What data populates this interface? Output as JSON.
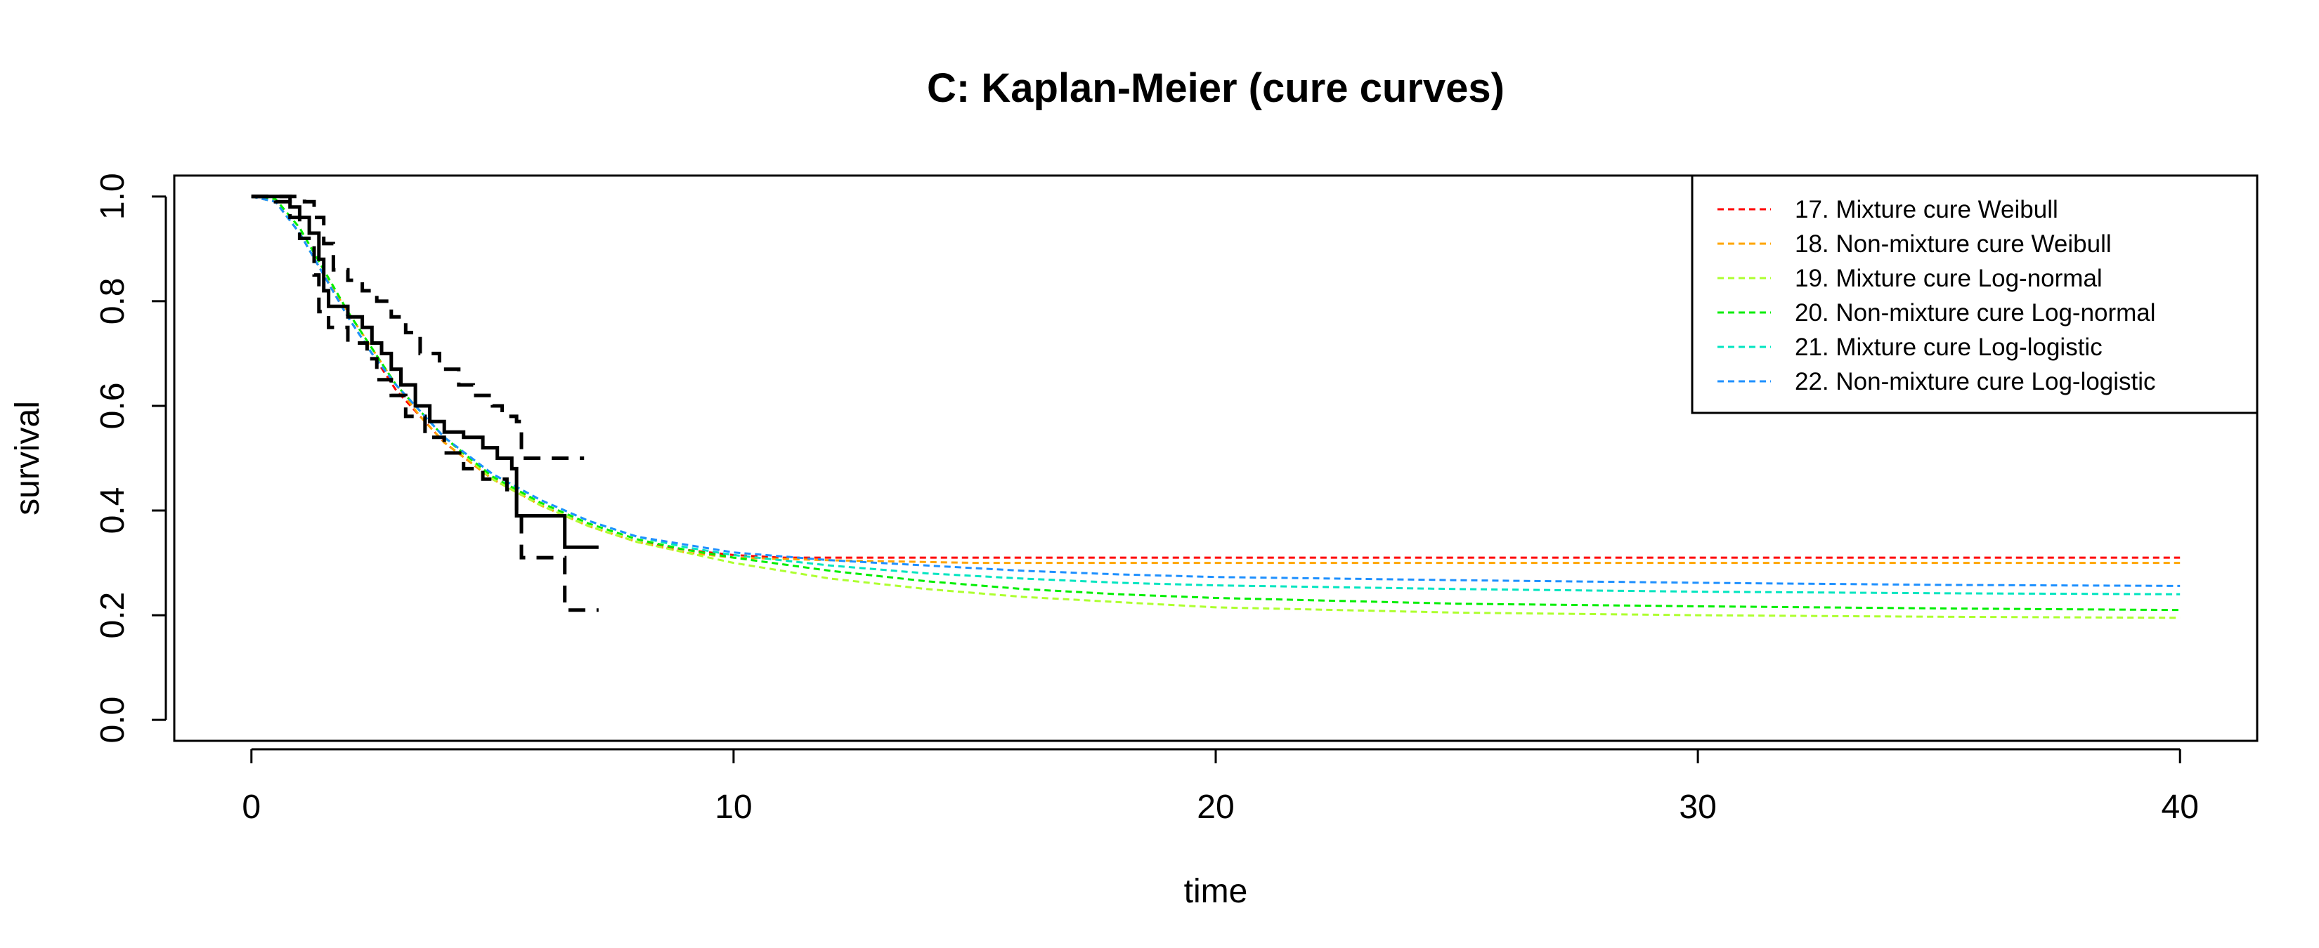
{
  "chart_data": {
    "type": "line",
    "title": "C: Kaplan-Meier (cure curves)",
    "xlabel": "time",
    "ylabel": "survival",
    "xlim": [
      -1.6,
      41.6
    ],
    "ylim": [
      -0.04,
      1.04
    ],
    "xticks": [
      0,
      10,
      20,
      30,
      40
    ],
    "xtick_labels": [
      "0",
      "10",
      "20",
      "30",
      "40"
    ],
    "yticks": [
      0.0,
      0.2,
      0.4,
      0.6,
      0.8,
      1.0
    ],
    "ytick_labels": [
      "0.0",
      "0.2",
      "0.4",
      "0.6",
      "0.8",
      "1.0"
    ],
    "grid": false,
    "legend_position": "top-right",
    "kaplan_meier": {
      "color": "#000000",
      "estimate": [
        [
          0,
          1.0
        ],
        [
          0.6,
          1.0
        ],
        [
          0.8,
          0.98
        ],
        [
          1.0,
          0.96
        ],
        [
          1.2,
          0.93
        ],
        [
          1.4,
          0.88
        ],
        [
          1.5,
          0.82
        ],
        [
          1.6,
          0.79
        ],
        [
          2.0,
          0.77
        ],
        [
          2.3,
          0.75
        ],
        [
          2.5,
          0.72
        ],
        [
          2.7,
          0.7
        ],
        [
          2.9,
          0.67
        ],
        [
          3.1,
          0.64
        ],
        [
          3.4,
          0.6
        ],
        [
          3.7,
          0.57
        ],
        [
          4.0,
          0.55
        ],
        [
          4.4,
          0.54
        ],
        [
          4.8,
          0.52
        ],
        [
          5.1,
          0.5
        ],
        [
          5.4,
          0.48
        ],
        [
          5.5,
          0.39
        ],
        [
          6.5,
          0.39
        ],
        [
          6.5,
          0.33
        ],
        [
          7.2,
          0.33
        ]
      ],
      "upper_ci": [
        [
          0,
          1.0
        ],
        [
          0.9,
          1.0
        ],
        [
          1.1,
          0.99
        ],
        [
          1.3,
          0.96
        ],
        [
          1.5,
          0.91
        ],
        [
          1.7,
          0.86
        ],
        [
          2.0,
          0.84
        ],
        [
          2.3,
          0.82
        ],
        [
          2.6,
          0.8
        ],
        [
          2.9,
          0.77
        ],
        [
          3.2,
          0.74
        ],
        [
          3.5,
          0.7
        ],
        [
          3.9,
          0.67
        ],
        [
          4.3,
          0.64
        ],
        [
          4.6,
          0.62
        ],
        [
          5.0,
          0.6
        ],
        [
          5.2,
          0.58
        ],
        [
          5.5,
          0.57
        ],
        [
          5.6,
          0.5
        ],
        [
          6.5,
          0.5
        ],
        [
          6.9,
          0.5
        ]
      ],
      "lower_ci": [
        [
          0,
          1.0
        ],
        [
          0.5,
          0.99
        ],
        [
          0.8,
          0.96
        ],
        [
          1.0,
          0.92
        ],
        [
          1.3,
          0.85
        ],
        [
          1.4,
          0.78
        ],
        [
          1.6,
          0.75
        ],
        [
          2.0,
          0.72
        ],
        [
          2.4,
          0.69
        ],
        [
          2.6,
          0.65
        ],
        [
          2.9,
          0.62
        ],
        [
          3.2,
          0.58
        ],
        [
          3.6,
          0.54
        ],
        [
          4.0,
          0.51
        ],
        [
          4.4,
          0.48
        ],
        [
          4.8,
          0.46
        ],
        [
          5.3,
          0.44
        ],
        [
          5.5,
          0.4
        ],
        [
          5.6,
          0.31
        ],
        [
          6.4,
          0.31
        ],
        [
          6.5,
          0.21
        ],
        [
          7.2,
          0.21
        ]
      ]
    },
    "series": [
      {
        "name": "17. Mixture cure Weibull",
        "color": "#FF0000",
        "values": [
          [
            0,
            1
          ],
          [
            0.5,
            0.99
          ],
          [
            1,
            0.93
          ],
          [
            1.5,
            0.85
          ],
          [
            2,
            0.77
          ],
          [
            2.5,
            0.7
          ],
          [
            3,
            0.63
          ],
          [
            3.5,
            0.58
          ],
          [
            4,
            0.53
          ],
          [
            5,
            0.46
          ],
          [
            6,
            0.41
          ],
          [
            7,
            0.37
          ],
          [
            8,
            0.34
          ],
          [
            9,
            0.325
          ],
          [
            10,
            0.315
          ],
          [
            11,
            0.31
          ],
          [
            12,
            0.31
          ],
          [
            40,
            0.31
          ]
        ]
      },
      {
        "name": "18. Non-mixture cure Weibull",
        "color": "#FFA500",
        "values": [
          [
            0,
            1
          ],
          [
            0.5,
            0.99
          ],
          [
            1,
            0.93
          ],
          [
            1.5,
            0.85
          ],
          [
            2,
            0.78
          ],
          [
            2.5,
            0.71
          ],
          [
            3,
            0.64
          ],
          [
            3.5,
            0.58
          ],
          [
            4,
            0.53
          ],
          [
            5,
            0.46
          ],
          [
            6,
            0.41
          ],
          [
            7,
            0.37
          ],
          [
            8,
            0.34
          ],
          [
            9,
            0.32
          ],
          [
            10,
            0.31
          ],
          [
            12,
            0.305
          ],
          [
            15,
            0.3
          ],
          [
            40,
            0.3
          ]
        ]
      },
      {
        "name": "19. Mixture cure Log-normal",
        "color": "#ADFF2F",
        "values": [
          [
            0,
            1
          ],
          [
            0.5,
            0.995
          ],
          [
            1,
            0.94
          ],
          [
            1.5,
            0.86
          ],
          [
            2,
            0.78
          ],
          [
            2.5,
            0.71
          ],
          [
            3,
            0.64
          ],
          [
            4,
            0.54
          ],
          [
            5,
            0.46
          ],
          [
            6,
            0.41
          ],
          [
            7,
            0.37
          ],
          [
            8,
            0.34
          ],
          [
            9,
            0.32
          ],
          [
            10,
            0.3
          ],
          [
            12,
            0.27
          ],
          [
            14,
            0.25
          ],
          [
            16,
            0.235
          ],
          [
            18,
            0.225
          ],
          [
            20,
            0.215
          ],
          [
            25,
            0.205
          ],
          [
            30,
            0.2
          ],
          [
            35,
            0.197
          ],
          [
            40,
            0.195
          ]
        ]
      },
      {
        "name": "20. Non-mixture cure Log-normal",
        "color": "#00EE00",
        "values": [
          [
            0,
            1
          ],
          [
            0.5,
            0.995
          ],
          [
            1,
            0.94
          ],
          [
            1.5,
            0.86
          ],
          [
            2,
            0.78
          ],
          [
            2.5,
            0.71
          ],
          [
            3,
            0.64
          ],
          [
            4,
            0.54
          ],
          [
            5,
            0.465
          ],
          [
            6,
            0.415
          ],
          [
            7,
            0.375
          ],
          [
            8,
            0.345
          ],
          [
            9,
            0.325
          ],
          [
            10,
            0.31
          ],
          [
            12,
            0.285
          ],
          [
            14,
            0.265
          ],
          [
            16,
            0.25
          ],
          [
            18,
            0.24
          ],
          [
            20,
            0.233
          ],
          [
            25,
            0.222
          ],
          [
            30,
            0.217
          ],
          [
            35,
            0.213
          ],
          [
            40,
            0.21
          ]
        ]
      },
      {
        "name": "21. Mixture cure Log-logistic",
        "color": "#00E5C0",
        "values": [
          [
            0,
            1
          ],
          [
            0.5,
            0.99
          ],
          [
            1,
            0.93
          ],
          [
            1.5,
            0.85
          ],
          [
            2,
            0.77
          ],
          [
            2.5,
            0.7
          ],
          [
            3,
            0.64
          ],
          [
            4,
            0.54
          ],
          [
            5,
            0.47
          ],
          [
            6,
            0.42
          ],
          [
            7,
            0.38
          ],
          [
            8,
            0.35
          ],
          [
            9,
            0.33
          ],
          [
            10,
            0.315
          ],
          [
            12,
            0.295
          ],
          [
            14,
            0.28
          ],
          [
            16,
            0.27
          ],
          [
            18,
            0.262
          ],
          [
            20,
            0.257
          ],
          [
            25,
            0.25
          ],
          [
            30,
            0.245
          ],
          [
            35,
            0.242
          ],
          [
            40,
            0.24
          ]
        ]
      },
      {
        "name": "22. Non-mixture cure Log-logistic",
        "color": "#1E90FF",
        "values": [
          [
            0,
            1
          ],
          [
            0.5,
            0.99
          ],
          [
            1,
            0.93
          ],
          [
            1.5,
            0.85
          ],
          [
            2,
            0.77
          ],
          [
            2.5,
            0.7
          ],
          [
            3,
            0.64
          ],
          [
            4,
            0.54
          ],
          [
            5,
            0.47
          ],
          [
            6,
            0.42
          ],
          [
            7,
            0.38
          ],
          [
            8,
            0.35
          ],
          [
            9,
            0.335
          ],
          [
            10,
            0.32
          ],
          [
            12,
            0.305
          ],
          [
            14,
            0.295
          ],
          [
            16,
            0.285
          ],
          [
            18,
            0.278
          ],
          [
            20,
            0.273
          ],
          [
            25,
            0.267
          ],
          [
            30,
            0.262
          ],
          [
            35,
            0.258
          ],
          [
            40,
            0.256
          ]
        ]
      }
    ]
  }
}
